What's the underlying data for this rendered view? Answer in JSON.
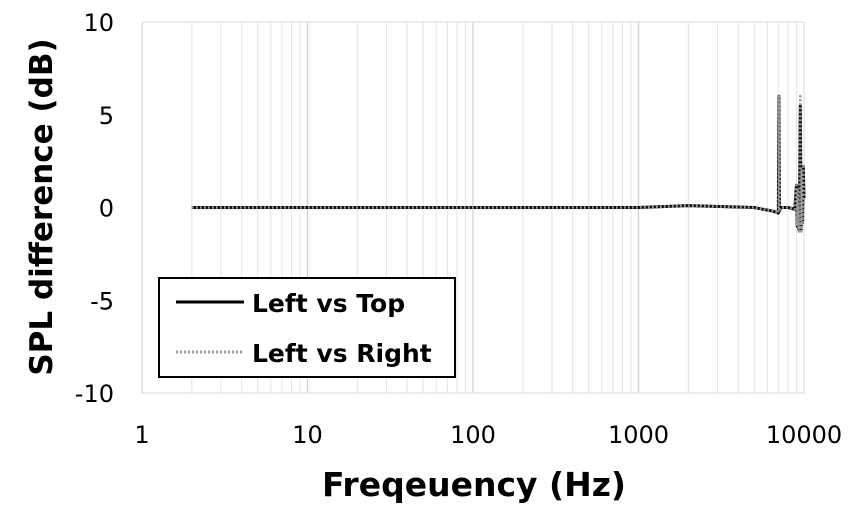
{
  "chart_data": {
    "type": "line",
    "xlabel": "Freqeuency (Hz)",
    "ylabel": "SPL difference (dB)",
    "x_scale": "log",
    "xlim": [
      1,
      10000
    ],
    "ylim": [
      -10,
      10
    ],
    "x_ticks": [
      "1",
      "10",
      "100",
      "1000",
      "10000"
    ],
    "y_ticks": [
      "10",
      "5",
      "0",
      "-5",
      "-10"
    ],
    "grid": true,
    "legend_position": "bottom-left",
    "series": [
      {
        "name": "Left vs Top",
        "color": "#000000",
        "style": "solid",
        "x": [
          2,
          10,
          100,
          1000,
          2000,
          5000,
          6500,
          7000,
          7050,
          7100,
          7300,
          8000,
          8800,
          9000,
          9100,
          9200,
          9300,
          9400,
          9500,
          9600,
          9700,
          9800,
          9900,
          10000
        ],
        "y": [
          0,
          0,
          0,
          0,
          0.1,
          0,
          -0.2,
          -0.3,
          6.0,
          -0.2,
          0,
          0,
          -0.1,
          1.2,
          -1.0,
          1.0,
          -1.2,
          0.5,
          5.5,
          -1.2,
          2.0,
          -0.8,
          2.2,
          0.5
        ]
      },
      {
        "name": "Left vs Right",
        "color": "#999999",
        "style": "dotted",
        "x": [
          2,
          10,
          100,
          1000,
          2000,
          5000,
          6500,
          7000,
          7050,
          7100,
          7300,
          8000,
          8800,
          9000,
          9100,
          9200,
          9300,
          9400,
          9500,
          9600,
          9700,
          9800,
          9900,
          10000
        ],
        "y": [
          0,
          0,
          0,
          0,
          0.1,
          0,
          -0.2,
          -0.3,
          6.0,
          -0.2,
          0,
          0,
          -0.1,
          1.2,
          -1.0,
          1.0,
          -1.3,
          0.5,
          6.1,
          -1.3,
          2.0,
          -0.8,
          2.3,
          0.5
        ]
      }
    ]
  }
}
